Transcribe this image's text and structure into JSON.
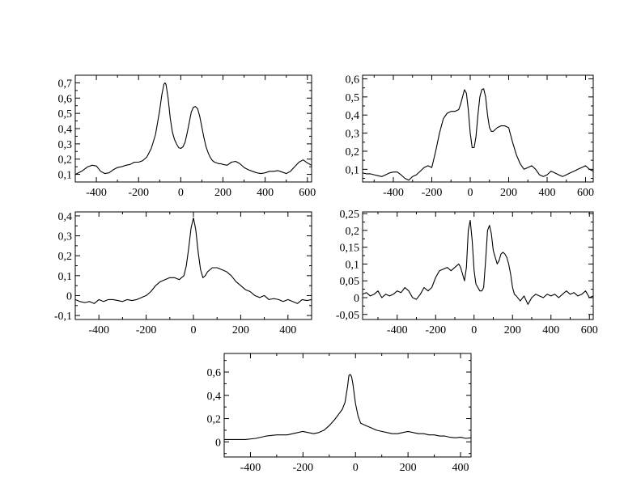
{
  "chart_data": [
    {
      "type": "line",
      "xlim": [
        -500,
        620
      ],
      "ylim": [
        0.05,
        0.75
      ],
      "xticks": [
        -400,
        -200,
        0,
        200,
        400,
        600
      ],
      "xtick_labels": [
        "-400",
        "-200",
        "0",
        "200",
        "400",
        "600"
      ],
      "yticks": [
        0.1,
        0.2,
        0.3,
        0.4,
        0.5,
        0.6,
        0.7
      ],
      "ytick_labels": [
        "0,1",
        "0,2",
        "0,3",
        "0,4",
        "0,5",
        "0,6",
        "0,7"
      ],
      "series": [
        {
          "x": [
            -500,
            -470,
            -440,
            -420,
            -400,
            -380,
            -360,
            -340,
            -320,
            -300,
            -280,
            -260,
            -240,
            -220,
            -200,
            -180,
            -160,
            -140,
            -120,
            -100,
            -90,
            -80,
            -75,
            -70,
            -60,
            -50,
            -40,
            -30,
            -20,
            -10,
            0,
            10,
            20,
            30,
            40,
            50,
            60,
            70,
            80,
            90,
            100,
            110,
            120,
            130,
            140,
            150,
            160,
            170,
            180,
            190,
            200,
            220,
            240,
            260,
            280,
            300,
            320,
            340,
            360,
            380,
            400,
            420,
            440,
            460,
            480,
            500,
            520,
            540,
            560,
            580,
            600,
            620
          ],
          "y": [
            0.1,
            0.12,
            0.15,
            0.16,
            0.155,
            0.12,
            0.105,
            0.11,
            0.13,
            0.145,
            0.15,
            0.16,
            0.165,
            0.18,
            0.18,
            0.19,
            0.215,
            0.27,
            0.36,
            0.52,
            0.62,
            0.69,
            0.7,
            0.69,
            0.6,
            0.47,
            0.38,
            0.33,
            0.3,
            0.275,
            0.27,
            0.28,
            0.31,
            0.37,
            0.44,
            0.51,
            0.54,
            0.545,
            0.53,
            0.48,
            0.41,
            0.34,
            0.28,
            0.24,
            0.21,
            0.19,
            0.18,
            0.175,
            0.17,
            0.17,
            0.165,
            0.16,
            0.18,
            0.185,
            0.17,
            0.145,
            0.13,
            0.12,
            0.11,
            0.105,
            0.11,
            0.12,
            0.12,
            0.125,
            0.115,
            0.105,
            0.12,
            0.15,
            0.18,
            0.195,
            0.175,
            0.16
          ]
        }
      ]
    },
    {
      "type": "line",
      "xlim": [
        -560,
        640
      ],
      "ylim": [
        0.03,
        0.62
      ],
      "xticks": [
        -400,
        -200,
        0,
        200,
        400,
        600
      ],
      "xtick_labels": [
        "-400",
        "-200",
        "0",
        "200",
        "400",
        "600"
      ],
      "yticks": [
        0.1,
        0.2,
        0.3,
        0.4,
        0.5,
        0.6
      ],
      "ytick_labels": [
        "0,1",
        "0,2",
        "0,3",
        "0,4",
        "0,5",
        "0,6"
      ],
      "series": [
        {
          "x": [
            -560,
            -540,
            -520,
            -500,
            -480,
            -460,
            -440,
            -420,
            -400,
            -380,
            -360,
            -340,
            -320,
            -310,
            -300,
            -280,
            -260,
            -240,
            -220,
            -200,
            -180,
            -160,
            -140,
            -120,
            -100,
            -80,
            -60,
            -50,
            -40,
            -30,
            -20,
            -10,
            0,
            10,
            20,
            30,
            40,
            50,
            60,
            70,
            80,
            90,
            100,
            110,
            120,
            130,
            140,
            160,
            180,
            200,
            220,
            240,
            260,
            280,
            300,
            320,
            340,
            360,
            380,
            400,
            420,
            440,
            460,
            480,
            500,
            520,
            540,
            560,
            580,
            600,
            620,
            640
          ],
          "y": [
            0.08,
            0.075,
            0.075,
            0.07,
            0.065,
            0.06,
            0.07,
            0.08,
            0.085,
            0.085,
            0.07,
            0.05,
            0.04,
            0.05,
            0.06,
            0.07,
            0.09,
            0.11,
            0.12,
            0.11,
            0.2,
            0.3,
            0.38,
            0.41,
            0.42,
            0.42,
            0.43,
            0.46,
            0.5,
            0.54,
            0.52,
            0.43,
            0.3,
            0.22,
            0.22,
            0.28,
            0.4,
            0.5,
            0.54,
            0.545,
            0.5,
            0.4,
            0.33,
            0.31,
            0.31,
            0.32,
            0.33,
            0.34,
            0.34,
            0.33,
            0.25,
            0.18,
            0.13,
            0.1,
            0.11,
            0.12,
            0.1,
            0.07,
            0.06,
            0.07,
            0.09,
            0.08,
            0.07,
            0.06,
            0.07,
            0.08,
            0.09,
            0.1,
            0.11,
            0.12,
            0.1,
            0.09
          ]
        }
      ]
    },
    {
      "type": "line",
      "xlim": [
        -500,
        500
      ],
      "ylim": [
        -0.12,
        0.42
      ],
      "xticks": [
        -400,
        -200,
        0,
        200,
        400
      ],
      "xtick_labels": [
        "-400",
        "-200",
        "0",
        "200",
        "400"
      ],
      "yticks": [
        -0.1,
        0,
        0.1,
        0.2,
        0.3,
        0.4
      ],
      "ytick_labels": [
        "-0,1",
        "0",
        "0,1",
        "0,2",
        "0,3",
        "0,4"
      ],
      "series": [
        {
          "x": [
            -500,
            -480,
            -460,
            -440,
            -420,
            -400,
            -380,
            -360,
            -340,
            -320,
            -300,
            -280,
            -260,
            -240,
            -220,
            -200,
            -180,
            -160,
            -140,
            -120,
            -100,
            -80,
            -60,
            -40,
            -30,
            -20,
            -10,
            0,
            10,
            20,
            30,
            40,
            50,
            60,
            80,
            100,
            120,
            140,
            160,
            180,
            200,
            220,
            240,
            260,
            280,
            300,
            320,
            340,
            360,
            380,
            400,
            420,
            440,
            460,
            480,
            500
          ],
          "y": [
            -0.02,
            -0.03,
            -0.035,
            -0.03,
            -0.04,
            -0.02,
            -0.03,
            -0.02,
            -0.02,
            -0.025,
            -0.03,
            -0.02,
            -0.025,
            -0.02,
            -0.01,
            0.0,
            0.02,
            0.05,
            0.07,
            0.08,
            0.09,
            0.09,
            0.08,
            0.1,
            0.15,
            0.24,
            0.34,
            0.39,
            0.33,
            0.22,
            0.13,
            0.09,
            0.1,
            0.12,
            0.14,
            0.14,
            0.13,
            0.12,
            0.1,
            0.07,
            0.05,
            0.03,
            0.02,
            0.0,
            -0.01,
            0.0,
            -0.02,
            -0.015,
            -0.02,
            -0.03,
            -0.02,
            -0.03,
            -0.04,
            -0.02,
            -0.025,
            -0.02
          ]
        }
      ]
    },
    {
      "type": "line",
      "xlim": [
        -580,
        620
      ],
      "ylim": [
        -0.065,
        0.255
      ],
      "xticks": [
        -400,
        -200,
        0,
        200,
        400,
        600
      ],
      "xtick_labels": [
        "-400",
        "-200",
        "0",
        "200",
        "400",
        "600"
      ],
      "yticks": [
        -0.05,
        0,
        0.05,
        0.1,
        0.15,
        0.2,
        0.25
      ],
      "ytick_labels": [
        "-0,05",
        "0",
        "0,05",
        "0,1",
        "0,15",
        "0,2",
        "0,25"
      ],
      "series": [
        {
          "x": [
            -580,
            -560,
            -540,
            -520,
            -500,
            -480,
            -460,
            -440,
            -420,
            -400,
            -380,
            -360,
            -340,
            -320,
            -300,
            -280,
            -260,
            -240,
            -220,
            -200,
            -180,
            -160,
            -140,
            -120,
            -100,
            -80,
            -70,
            -60,
            -50,
            -40,
            -30,
            -20,
            -10,
            0,
            10,
            20,
            30,
            40,
            50,
            60,
            70,
            80,
            90,
            100,
            110,
            120,
            130,
            140,
            150,
            160,
            170,
            180,
            190,
            200,
            210,
            220,
            240,
            260,
            280,
            300,
            320,
            340,
            360,
            380,
            400,
            420,
            440,
            460,
            480,
            500,
            520,
            540,
            560,
            580,
            600,
            620
          ],
          "y": [
            0.01,
            0.015,
            0.005,
            0.01,
            0.02,
            0.0,
            0.01,
            0.005,
            0.01,
            0.02,
            0.015,
            0.03,
            0.02,
            0.0,
            -0.005,
            0.01,
            0.03,
            0.02,
            0.03,
            0.06,
            0.08,
            0.085,
            0.09,
            0.08,
            0.09,
            0.1,
            0.09,
            0.07,
            0.05,
            0.09,
            0.2,
            0.23,
            0.17,
            0.08,
            0.04,
            0.03,
            0.02,
            0.02,
            0.03,
            0.11,
            0.2,
            0.215,
            0.19,
            0.14,
            0.12,
            0.1,
            0.11,
            0.13,
            0.135,
            0.13,
            0.12,
            0.1,
            0.07,
            0.03,
            0.01,
            0.005,
            -0.01,
            0.005,
            -0.02,
            0.0,
            0.01,
            0.005,
            0.0,
            0.01,
            0.005,
            0.01,
            0.0,
            0.01,
            0.02,
            0.01,
            0.015,
            0.005,
            0.01,
            0.02,
            0.0,
            0.005
          ]
        }
      ]
    },
    {
      "type": "line",
      "xlim": [
        -500,
        440
      ],
      "ylim": [
        -0.13,
        0.76
      ],
      "xticks": [
        -400,
        -200,
        0,
        200,
        400
      ],
      "xtick_labels": [
        "-400",
        "-200",
        "0",
        "200",
        "400"
      ],
      "yticks": [
        0,
        0.2,
        0.4,
        0.6
      ],
      "ytick_labels": [
        "0",
        "0,2",
        "0,4",
        "0,6"
      ],
      "series": [
        {
          "x": [
            -500,
            -460,
            -420,
            -380,
            -340,
            -300,
            -260,
            -220,
            -200,
            -180,
            -160,
            -140,
            -120,
            -100,
            -80,
            -60,
            -50,
            -40,
            -30,
            -25,
            -20,
            -15,
            -10,
            0,
            10,
            20,
            40,
            60,
            80,
            100,
            120,
            140,
            160,
            180,
            200,
            220,
            240,
            260,
            280,
            300,
            320,
            340,
            360,
            380,
            400,
            420,
            440
          ],
          "y": [
            0.02,
            0.02,
            0.02,
            0.03,
            0.05,
            0.06,
            0.06,
            0.08,
            0.09,
            0.08,
            0.07,
            0.08,
            0.1,
            0.14,
            0.19,
            0.25,
            0.28,
            0.34,
            0.48,
            0.57,
            0.58,
            0.56,
            0.5,
            0.33,
            0.22,
            0.16,
            0.14,
            0.12,
            0.1,
            0.09,
            0.08,
            0.07,
            0.07,
            0.08,
            0.09,
            0.08,
            0.07,
            0.07,
            0.06,
            0.06,
            0.05,
            0.05,
            0.04,
            0.035,
            0.04,
            0.03,
            0.035
          ]
        }
      ]
    }
  ]
}
